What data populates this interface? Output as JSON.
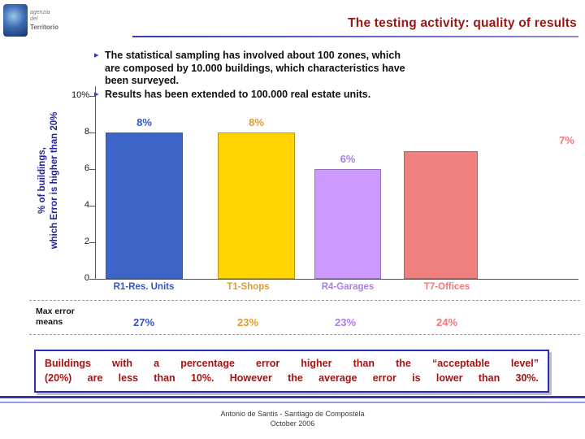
{
  "slide": {
    "logo": {
      "line1": "agenzia del",
      "line2": "Territorio"
    },
    "title": "The testing activity: quality of results",
    "icons": {
      "bullet_arrow": "▸"
    },
    "bullets": [
      "The statistical sampling has involved about 100 zones, which\nare composed by 10.000 buildings, which characteristics have\nbeen surveyed.",
      "Results has been extended to 100.000 real estate units."
    ],
    "callout": "Buildings with a percentage error higher than the “acceptable level”\n(20%) are less than 10%. However the average error is lower than 30%.",
    "footer_line1": "Antonio de Santis - Santiago de Compostela",
    "footer_line2": "October 2006"
  },
  "chart_data": {
    "type": "bar",
    "title": "",
    "ylabel": "% of buildings, which Error is higher than 20%",
    "ylabel_lines": [
      "% of buildings,",
      "which Error is higher than 20%"
    ],
    "categories": [
      "R1-Res. Units",
      "T1-Shops",
      "R4-Garages",
      "T7-Offices"
    ],
    "values": [
      8,
      8,
      6,
      7
    ],
    "value_labels": [
      "8%",
      "8%",
      "6%",
      "7%"
    ],
    "max_error_label": "Max error\nmeans",
    "max_error_values": [
      "27%",
      "23%",
      "23%",
      "24%"
    ],
    "ylim": [
      0,
      10
    ],
    "yticks": [
      "10%",
      "8",
      "6",
      "4",
      "2",
      "0"
    ],
    "grid": false,
    "legend": false,
    "bar_colors": [
      "#3E66C8",
      "#FFD400",
      "#CC99FF",
      "#F08080"
    ],
    "label_colors": [
      "#3355C8",
      "#DE9B35",
      "#AC7EE4",
      "#F07878"
    ]
  }
}
